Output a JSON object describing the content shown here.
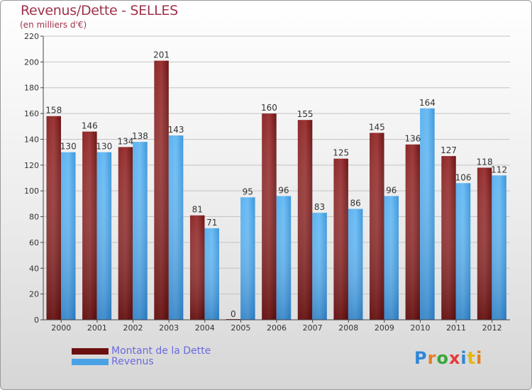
{
  "title": "Revenus/Dette - SELLES",
  "subtitle": "(en milliers d'€)",
  "legend": [
    {
      "label": "Montant de la Dette",
      "color": "#6b1010"
    },
    {
      "label": "Revenus",
      "color": "#4aa2e6"
    }
  ],
  "logo": {
    "letters": [
      {
        "char": "P",
        "color": "#2e86d6"
      },
      {
        "char": "r",
        "color": "#e67e22"
      },
      {
        "char": "o",
        "color": "#3aa63a"
      },
      {
        "char": "x",
        "color": "#e63a3a"
      },
      {
        "char": "i",
        "color": "#2e86d6"
      },
      {
        "char": "t",
        "color": "#e6b800"
      },
      {
        "char": "i",
        "color": "#e67e22"
      }
    ]
  },
  "chart_data": {
    "type": "bar",
    "categories": [
      "2000",
      "2001",
      "2002",
      "2003",
      "2004",
      "2005",
      "2006",
      "2007",
      "2008",
      "2009",
      "2010",
      "2011",
      "2012"
    ],
    "series": [
      {
        "name": "Montant de la Dette",
        "color": "#6b1010",
        "values": [
          158,
          146,
          134,
          201,
          81,
          0,
          160,
          155,
          125,
          145,
          136,
          127,
          118
        ]
      },
      {
        "name": "Revenus",
        "color": "#4aa2e6",
        "values": [
          130,
          130,
          138,
          143,
          71,
          95,
          96,
          83,
          86,
          96,
          164,
          106,
          112
        ]
      }
    ],
    "ylim": [
      0,
      220
    ],
    "yticks": [
      0,
      20,
      40,
      60,
      80,
      100,
      120,
      140,
      160,
      180,
      200,
      220
    ],
    "grid": true,
    "legend_position": "bottom-left"
  }
}
